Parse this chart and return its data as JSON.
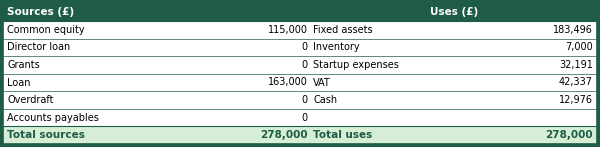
{
  "header_bg": "#1e5c45",
  "header_text_color": "#ffffff",
  "row_bg": "#ffffff",
  "total_bg": "#d6edd6",
  "total_text_color": "#1e5c45",
  "border_color": "#1e5c45",
  "text_color": "#000000",
  "col1_header": "Sources (£)",
  "col2_header": "Uses (£)",
  "sources": [
    [
      "Common equity",
      "115,000"
    ],
    [
      "Director loan",
      "0"
    ],
    [
      "Grants",
      "0"
    ],
    [
      "Loan",
      "163,000"
    ],
    [
      "Overdraft",
      "0"
    ],
    [
      "Accounts payables",
      "0"
    ]
  ],
  "uses": [
    [
      "Fixed assets",
      "183,496"
    ],
    [
      "Inventory",
      "7,000"
    ],
    [
      "Startup expenses",
      "32,191"
    ],
    [
      "VAT",
      "42,337"
    ],
    [
      "Cash",
      "12,976"
    ],
    [
      "",
      ""
    ]
  ],
  "total_sources_label": "Total sources",
  "total_sources_value": "278,000",
  "total_uses_label": "Total uses",
  "total_uses_value": "278,000",
  "fig_width": 6.0,
  "fig_height": 1.47,
  "dpi": 100
}
